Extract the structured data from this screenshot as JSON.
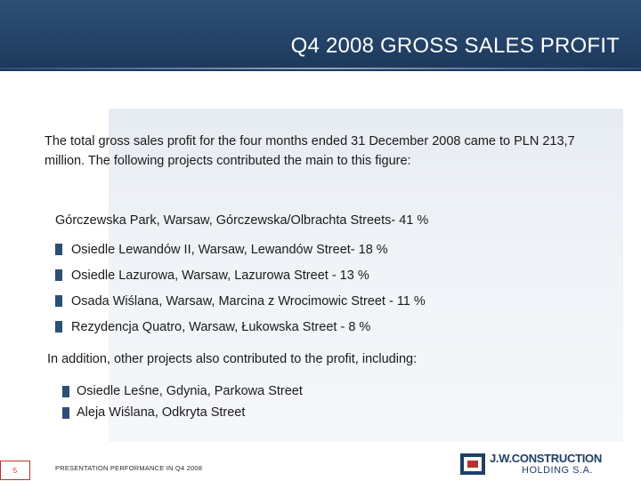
{
  "header": {
    "title": "Q4 2008 GROSS SALES PROFIT"
  },
  "content": {
    "intro": "The total gross sales profit for the four months ended 31 December 2008 came to PLN 213,7 million. The following projects contributed the main to this figure:",
    "lead_project": "Górczewska Park, Warsaw, Górczewska/Olbrachta Streets- 41 %",
    "projects": [
      "Osiedle Lewandów II, Warsaw, Lewandów Street- 18 %",
      "Osiedle Lazurowa, Warsaw, Lazurowa Street - 13 %",
      "Osada Wiślana, Warsaw, Marcina z Wrocimowic Street - 11 %",
      "Rezydencja Quatro, Warsaw, Łukowska Street - 8 %"
    ],
    "addition_text": "In addition, other projects also contributed to the profit, including:",
    "other_projects": [
      "Osiedle Leśne, Gdynia, Parkowa Street",
      "Aleja Wiślana, Odkryta Street"
    ]
  },
  "footer": {
    "page_number": "5",
    "presentation_label": "PRESENTATION PERFORMANCE IN Q4 2008",
    "logo_name": "J.W.CONSTRUCTION",
    "logo_sub": "HOLDING S.A."
  },
  "colors": {
    "header_blue": "#2e4f75",
    "bullet_blue": "#2e4f75",
    "page_box_red": "#b8322f",
    "panel_light": "#dbe4ee"
  }
}
